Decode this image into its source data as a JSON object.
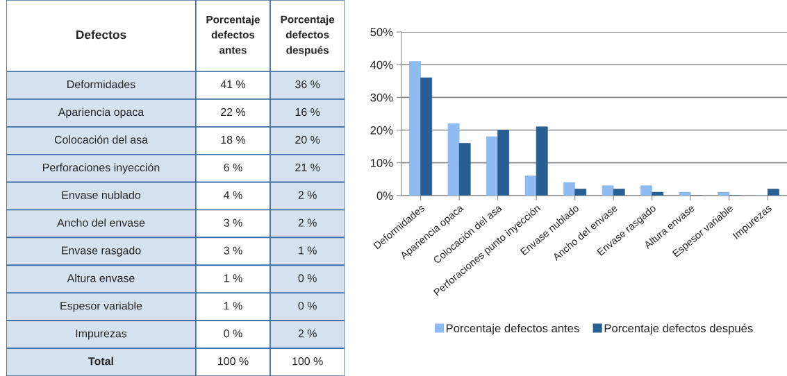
{
  "chart_data": {
    "type": "bar",
    "categories": [
      "Deformidades",
      "Apariencia opaca",
      "Colocación del asa",
      "Perforaciones punto inyección",
      "Envase nublado",
      "Ancho del envase",
      "Envase rasgado",
      "Altura envase",
      "Espesor variable",
      "Impurezas"
    ],
    "series": [
      {
        "name": "Porcentaje defectos antes",
        "color": "#8ebbf0",
        "values": [
          41,
          22,
          18,
          6,
          4,
          3,
          3,
          1,
          1,
          0
        ]
      },
      {
        "name": "Porcentaje defectos después",
        "color": "#285f92",
        "values": [
          36,
          16,
          20,
          21,
          2,
          2,
          1,
          0,
          0,
          2
        ]
      }
    ],
    "ylim": [
      0,
      50
    ],
    "yticks": [
      {
        "value": 0,
        "label": "0%"
      },
      {
        "value": 10,
        "label": "10%"
      },
      {
        "value": 20,
        "label": "20%"
      },
      {
        "value": 30,
        "label": "30%"
      },
      {
        "value": 40,
        "label": "40%"
      },
      {
        "value": 50,
        "label": "50%"
      }
    ],
    "grid": "y",
    "legend": "bottom",
    "annotations": [
      "Defectos",
      "Deformidades",
      "41 %",
      "36 %",
      "Apariencia opaca",
      "22 %",
      "16 %",
      "Colocación del asa",
      "18 %",
      "20 %",
      "Perforaciones inyección",
      "6 %",
      "21 %",
      "Envase nublado",
      "4 %",
      "2 %",
      "Ancho del envase",
      "3 %",
      "2 %",
      "Envase rasgado",
      "3 %",
      "1 %",
      "Altura envase",
      "1 %",
      "0 %",
      "Espesor variable",
      "1 %",
      "0 %",
      "Impurezas",
      "0 %",
      "2 %",
      "Total",
      "100 %",
      "100 %"
    ]
  }
}
